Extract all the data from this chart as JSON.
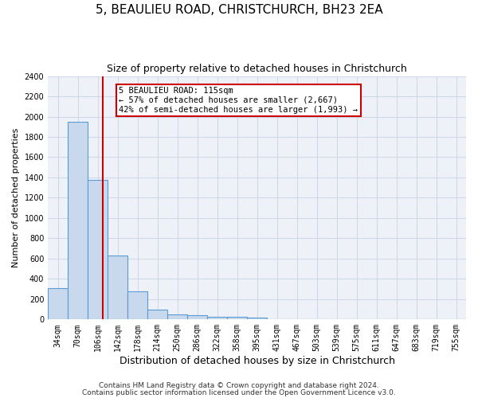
{
  "title": "5, BEAULIEU ROAD, CHRISTCHURCH, BH23 2EA",
  "subtitle": "Size of property relative to detached houses in Christchurch",
  "xlabel": "Distribution of detached houses by size in Christchurch",
  "ylabel": "Number of detached properties",
  "bin_labels": [
    "34sqm",
    "70sqm",
    "106sqm",
    "142sqm",
    "178sqm",
    "214sqm",
    "250sqm",
    "286sqm",
    "322sqm",
    "358sqm",
    "395sqm",
    "431sqm",
    "467sqm",
    "503sqm",
    "539sqm",
    "575sqm",
    "611sqm",
    "647sqm",
    "683sqm",
    "719sqm",
    "755sqm"
  ],
  "bar_values": [
    310,
    1950,
    1380,
    630,
    275,
    100,
    50,
    42,
    30,
    25,
    20,
    0,
    0,
    0,
    0,
    0,
    0,
    0,
    0,
    0,
    0
  ],
  "bar_color": "#c8d9ed",
  "bar_edgecolor": "#5b9bd5",
  "grid_color": "#d0d8e8",
  "bg_color": "#eef2f8",
  "red_line_x": 2.25,
  "annotation_text": "5 BEAULIEU ROAD: 115sqm\n← 57% of detached houses are smaller (2,667)\n42% of semi-detached houses are larger (1,993) →",
  "annotation_box_color": "#ffffff",
  "annotation_box_edgecolor": "#cc0000",
  "ylim": [
    0,
    2400
  ],
  "yticks": [
    0,
    200,
    400,
    600,
    800,
    1000,
    1200,
    1400,
    1600,
    1800,
    2000,
    2200,
    2400
  ],
  "footer_line1": "Contains HM Land Registry data © Crown copyright and database right 2024.",
  "footer_line2": "Contains public sector information licensed under the Open Government Licence v3.0.",
  "title_fontsize": 11,
  "subtitle_fontsize": 9,
  "axis_label_fontsize": 8,
  "tick_fontsize": 7,
  "annotation_fontsize": 7.5,
  "footer_fontsize": 6.5
}
